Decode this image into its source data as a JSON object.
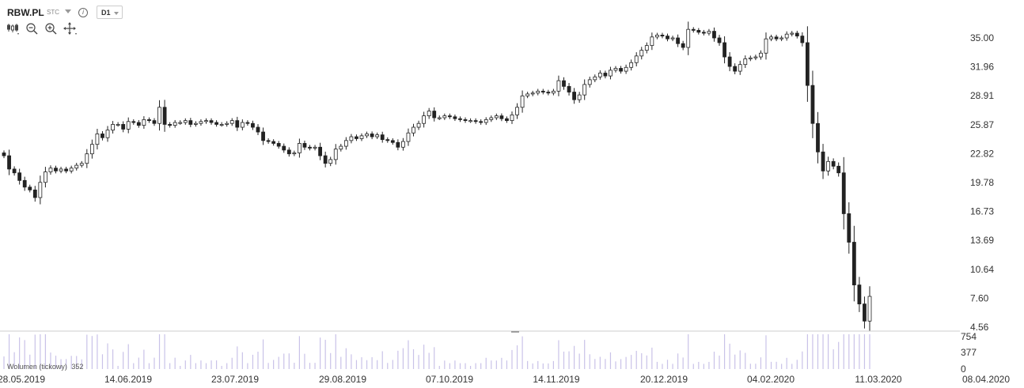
{
  "toolbar": {
    "symbol": "RBW.PL",
    "market": "STC",
    "interval": "D1",
    "tools": [
      "chart-type-icon",
      "zoom-out-icon",
      "zoom-in-icon",
      "crosshair-move-icon"
    ]
  },
  "colors": {
    "up": "#ffffff",
    "down": "#222222",
    "wick": "#222222",
    "volume": "#c9c2e8",
    "grid": "#cccccc"
  },
  "chart_data": {
    "type": "candlestick",
    "price_axis": {
      "ticks": [
        "35.00",
        "31.96",
        "28.91",
        "25.87",
        "22.82",
        "19.78",
        "16.73",
        "13.69",
        "10.64",
        "7.60",
        "4.56"
      ]
    },
    "volume_axis": {
      "ticks": [
        "754",
        "377",
        "0"
      ]
    },
    "volume_label": "Wolumen (tickowy)",
    "volume_last": "352",
    "x_ticks": [
      "28.05.2019",
      "14.06.2019",
      "23.07.2019",
      "29.08.2019",
      "07.10.2019",
      "14.11.2019",
      "20.12.2019",
      "04.02.2020",
      "11.03.2020",
      "08.04.2020"
    ],
    "closes": [
      22.6,
      21.2,
      20.8,
      20.0,
      19.3,
      19.0,
      18.2,
      19.8,
      20.9,
      21.3,
      21.0,
      21.2,
      21.0,
      21.3,
      21.6,
      21.8,
      22.8,
      23.8,
      24.9,
      24.5,
      25.3,
      25.9,
      25.9,
      25.4,
      26.2,
      26.1,
      25.8,
      26.4,
      26.3,
      26.0,
      27.7,
      25.9,
      25.8,
      26.1,
      26.1,
      26.3,
      25.9,
      26.0,
      26.2,
      26.3,
      26.1,
      25.9,
      25.9,
      26.0,
      26.3,
      25.6,
      26.1,
      26.0,
      25.6,
      25.1,
      24.2,
      24.1,
      23.9,
      23.6,
      23.2,
      22.8,
      22.9,
      23.9,
      23.5,
      23.4,
      23.5,
      22.6,
      21.8,
      22.2,
      23.3,
      23.6,
      24.2,
      24.6,
      24.4,
      24.7,
      24.9,
      24.6,
      24.8,
      24.3,
      24.2,
      24.0,
      23.5,
      24.1,
      25.0,
      25.6,
      26.0,
      26.8,
      27.3,
      26.6,
      26.6,
      26.8,
      26.7,
      26.5,
      26.4,
      26.3,
      26.3,
      26.2,
      26.1,
      26.4,
      26.6,
      26.8,
      26.5,
      26.3,
      26.9,
      27.7,
      28.9,
      29.1,
      29.2,
      29.4,
      29.3,
      29.2,
      29.4,
      30.5,
      29.9,
      29.3,
      28.5,
      29.0,
      30.1,
      30.6,
      30.9,
      31.3,
      31.0,
      31.6,
      31.8,
      31.5,
      31.9,
      32.4,
      33.1,
      33.7,
      34.2,
      35.1,
      35.3,
      35.2,
      34.9,
      35.0,
      34.4,
      34.0,
      35.9,
      35.8,
      35.6,
      35.5,
      35.7,
      35.0,
      34.5,
      33.0,
      32.0,
      31.5,
      32.2,
      32.8,
      32.9,
      33.0,
      33.4,
      34.9,
      35.1,
      34.9,
      35.0,
      35.4,
      35.5,
      35.2,
      34.5,
      30.0,
      26.0,
      23.0,
      21.0,
      22.0,
      21.5,
      20.8,
      16.5,
      13.5,
      9.0,
      7.0,
      5.2,
      7.8
    ]
  }
}
